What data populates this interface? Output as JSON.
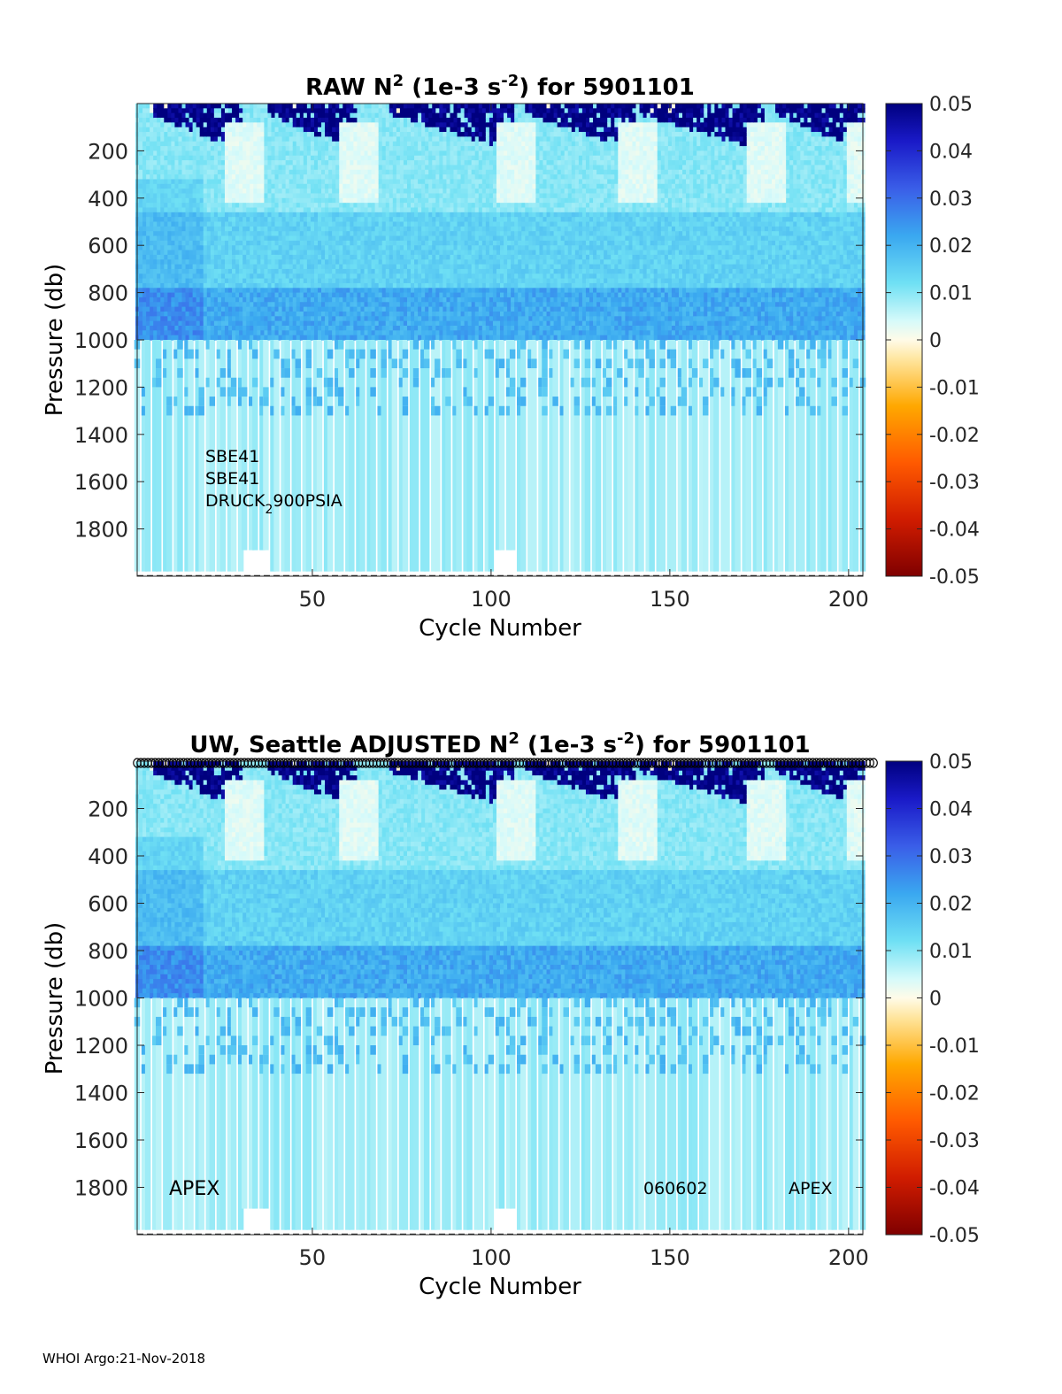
{
  "footer": "WHOI Argo:21-Nov-2018",
  "colorbar_colors": [
    "#7f0000",
    "#d01c00",
    "#ff6a00",
    "#ffc200",
    "#fff2d0",
    "#b5f4f4",
    "#3fc8f0",
    "#3a6fe8",
    "#1f1fc8",
    "#00007f"
  ],
  "chart_data": [
    {
      "type": "heatmap",
      "title": {
        "pre": "RAW N",
        "sup1": "2",
        "mid": " (1e-3 s",
        "sup2": "-2",
        "post": ") for 5901101"
      },
      "xlabel": "Cycle Number",
      "ylabel": "Pressure (db)",
      "xlim": [
        1,
        204
      ],
      "ylim": [
        0,
        2000
      ],
      "xticks": [
        50,
        100,
        150,
        200
      ],
      "yticks": [
        200,
        400,
        600,
        800,
        1000,
        1200,
        1400,
        1600,
        1800
      ],
      "colorbar": {
        "range": [
          -0.05,
          0.05
        ],
        "ticks": [
          "0.05",
          "0.04",
          "0.03",
          "0.02",
          "0.01",
          "0",
          "-0.01",
          "-0.02",
          "-0.03",
          "-0.04",
          "-0.05"
        ]
      },
      "annotations": {
        "sensor1": "SBE41",
        "sensor2": "SBE41",
        "pressure_pre": "DRUCK",
        "pressure_sub": "2",
        "pressure_post": "900PSIA"
      },
      "series_depth_transition_db": 1000,
      "shallow_stratification_cycles": [
        [
          5,
          30
        ],
        [
          38,
          62
        ],
        [
          72,
          106
        ],
        [
          110,
          140
        ],
        [
          142,
          176
        ],
        [
          180,
          204
        ]
      ],
      "deep_profile_spacing_cycles": 3
    },
    {
      "type": "heatmap",
      "title": {
        "pre": "UW, Seattle  ADJUSTED N",
        "sup1": "2",
        "mid": " (1e-3 s",
        "sup2": "-2",
        "post": ") for 5901101"
      },
      "xlabel": "Cycle Number",
      "ylabel": "Pressure (db)",
      "xlim": [
        1,
        204
      ],
      "ylim": [
        0,
        2000
      ],
      "xticks": [
        50,
        100,
        150,
        200
      ],
      "yticks": [
        200,
        400,
        600,
        800,
        1000,
        1200,
        1400,
        1600,
        1800
      ],
      "colorbar": {
        "range": [
          -0.05,
          0.05
        ],
        "ticks": [
          "0.05",
          "0.04",
          "0.03",
          "0.02",
          "0.01",
          "0",
          "-0.01",
          "-0.02",
          "-0.03",
          "-0.04",
          "-0.05"
        ]
      },
      "annotations": {
        "platform_left": "APEX",
        "firmware": "060602",
        "platform_right": "APEX"
      },
      "qc_marker_row": "circles at each cycle along top edge"
    }
  ]
}
